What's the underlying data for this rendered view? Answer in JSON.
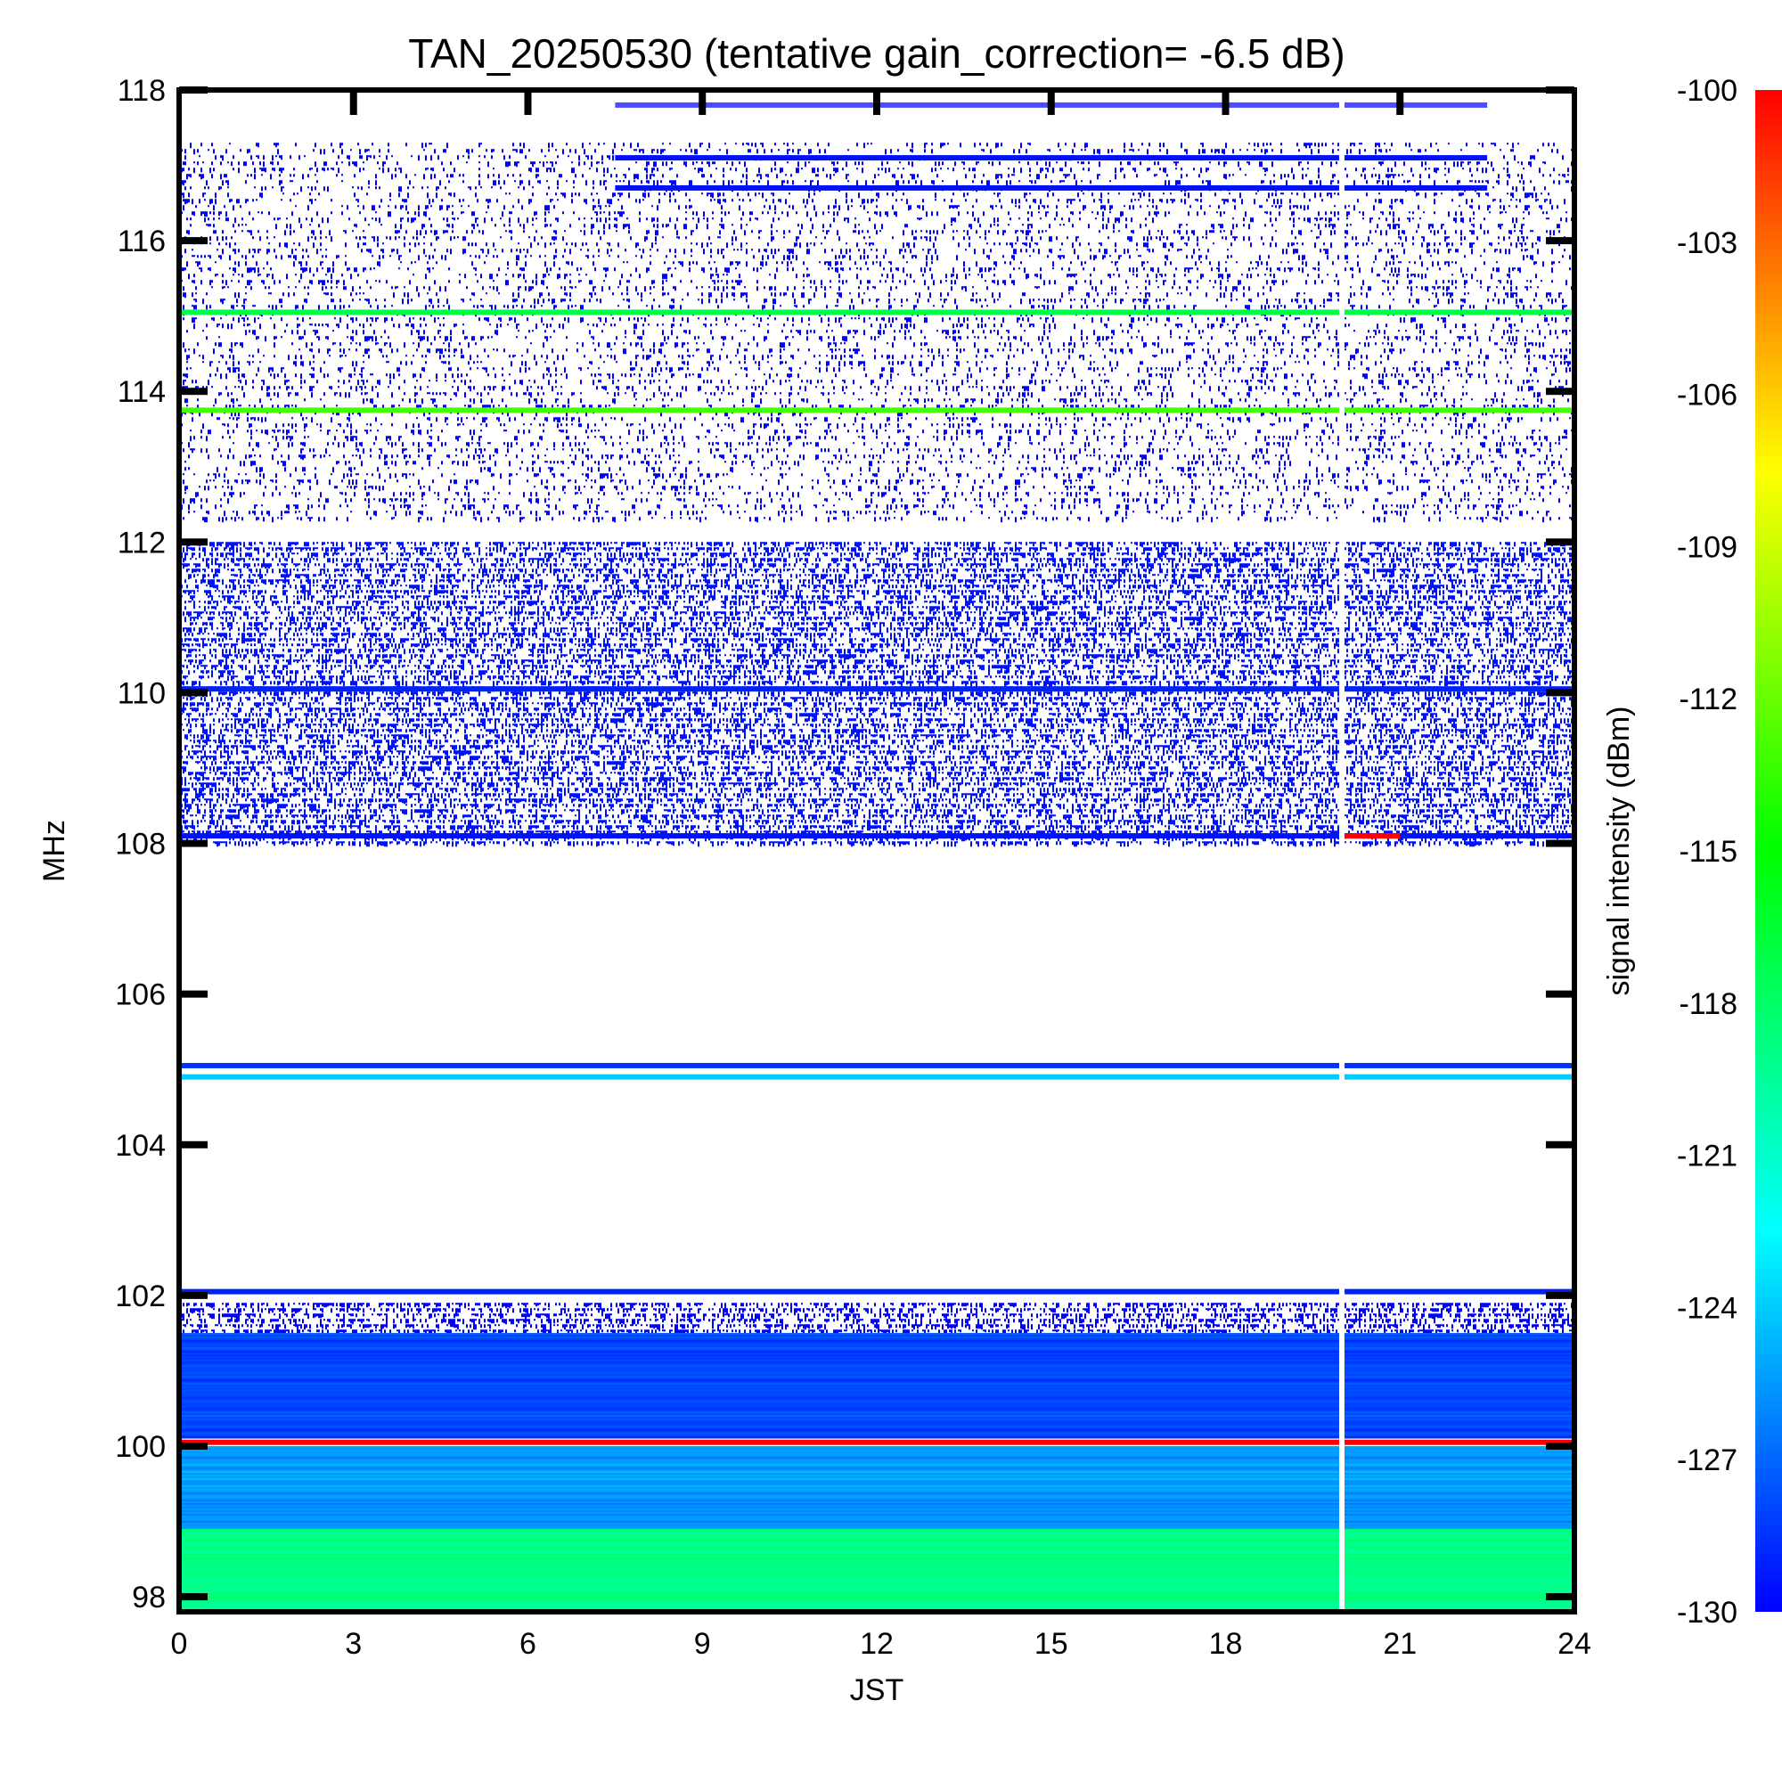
{
  "chart_data": {
    "type": "heatmap",
    "title": "TAN_20250530 (tentative gain_correction= -6.5 dB)",
    "xlabel": "JST",
    "ylabel": "MHz",
    "xlim": [
      0,
      24
    ],
    "ylim": [
      97.8,
      118
    ],
    "x_ticks": [
      "0",
      "3",
      "6",
      "9",
      "12",
      "15",
      "18",
      "21",
      "24"
    ],
    "y_ticks": [
      "98",
      "100",
      "102",
      "104",
      "106",
      "108",
      "110",
      "112",
      "114",
      "116",
      "118"
    ],
    "colorbar": {
      "label": "signal intensity (dBm)",
      "range": [
        -130,
        -100
      ],
      "ticks": [
        "-100",
        "-103",
        "-106",
        "-109",
        "-112",
        "-115",
        "-118",
        "-121",
        "-124",
        "-127",
        "-130"
      ],
      "colors": [
        "#0000ff",
        "#0080ff",
        "#00ffff",
        "#00ff80",
        "#00ff00",
        "#80ff00",
        "#ffff00",
        "#ff8000",
        "#ff0000"
      ]
    },
    "bands": [
      {
        "from_mhz": 112.3,
        "to_mhz": 117.3,
        "pattern": "sparse",
        "intensity_dbm": -130
      },
      {
        "from_mhz": 108.0,
        "to_mhz": 112.0,
        "pattern": "dense",
        "intensity_dbm": -129.5
      },
      {
        "from_mhz": 101.5,
        "to_mhz": 101.9,
        "pattern": "dense",
        "intensity_dbm": -130
      },
      {
        "from_mhz": 100.1,
        "to_mhz": 101.5,
        "pattern": "solid",
        "intensity_dbm": -128
      },
      {
        "from_mhz": 98.9,
        "to_mhz": 100.0,
        "pattern": "solid",
        "intensity_dbm": -125.5
      },
      {
        "from_mhz": 97.8,
        "to_mhz": 98.9,
        "pattern": "solid",
        "intensity_dbm": -119
      }
    ],
    "lines": [
      {
        "freq_mhz": 117.8,
        "intensity_dbm": -130,
        "from_jst": 7.5,
        "to_jst": 22.5,
        "style": "dotted"
      },
      {
        "freq_mhz": 117.1,
        "intensity_dbm": -129.5,
        "from_jst": 7.5,
        "to_jst": 22.5
      },
      {
        "freq_mhz": 116.7,
        "intensity_dbm": -129.5,
        "from_jst": 7.5,
        "to_jst": 22.5
      },
      {
        "freq_mhz": 115.05,
        "intensity_dbm": -117
      },
      {
        "freq_mhz": 113.75,
        "intensity_dbm": -113
      },
      {
        "freq_mhz": 110.05,
        "intensity_dbm": -129
      },
      {
        "freq_mhz": 108.1,
        "intensity_dbm": -129.5
      },
      {
        "freq_mhz": 108.1,
        "intensity_dbm": -100,
        "from_jst": 20.0,
        "to_jst": 21.0
      },
      {
        "freq_mhz": 105.05,
        "intensity_dbm": -128.5
      },
      {
        "freq_mhz": 104.9,
        "intensity_dbm": -124
      },
      {
        "freq_mhz": 102.05,
        "intensity_dbm": -129
      },
      {
        "freq_mhz": 100.05,
        "intensity_dbm": -100
      }
    ],
    "data_gap_jst": 20.0
  }
}
